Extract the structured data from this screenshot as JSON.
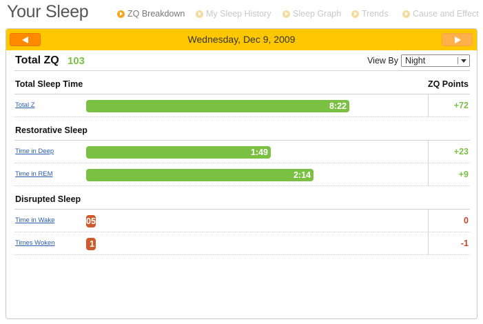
{
  "page": {
    "title": "Your Sleep"
  },
  "nav": [
    {
      "label": "ZQ Breakdown",
      "active": true
    },
    {
      "label": "My Sleep History",
      "active": false
    },
    {
      "label": "Sleep Graph",
      "active": false
    },
    {
      "label": "Trends",
      "active": false
    },
    {
      "label": "Cause and Effect",
      "active": false
    }
  ],
  "date_bar": {
    "date": "Wednesday, Dec 9, 2009"
  },
  "summary": {
    "zq_label": "Total ZQ",
    "zq_value": "103",
    "view_by_label": "View By",
    "view_by_value": "Night"
  },
  "points_header": "ZQ Points",
  "sections": [
    {
      "title": "Total Sleep Time",
      "rows": [
        {
          "label": "Total Z",
          "value": "8:22",
          "fill_fraction": 0.8,
          "points": "+72",
          "tone": "pos"
        }
      ]
    },
    {
      "title": "Restorative Sleep",
      "rows": [
        {
          "label": "Time in Deep",
          "value": "1:49",
          "fill_fraction": 0.56,
          "points": "+23",
          "tone": "pos"
        },
        {
          "label": "Time in REM",
          "value": "2:14",
          "fill_fraction": 0.69,
          "points": "+9",
          "tone": "pos"
        }
      ]
    },
    {
      "title": "Disrupted Sleep",
      "rows": [
        {
          "label": "Time in Wake",
          "value": "05",
          "fill_fraction": 0.024,
          "points": "0",
          "tone": "neg"
        },
        {
          "label": "Times Woken",
          "value": "1",
          "fill_fraction": 0.029,
          "points": "-1",
          "tone": "neg"
        }
      ]
    }
  ],
  "colors": {
    "accent": "#ffc700",
    "arrow": "#ff8a00",
    "positive": "#7ac143",
    "negative": "#cf5a2b",
    "link": "#2a5db0"
  }
}
